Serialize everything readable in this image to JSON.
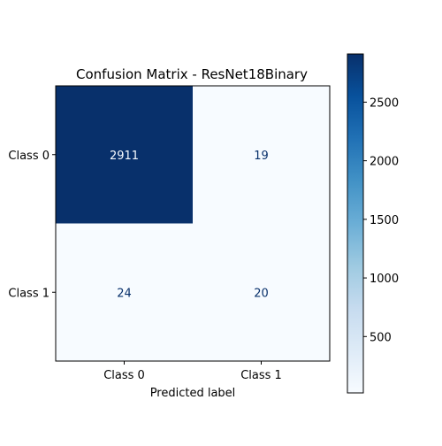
{
  "chart_data": {
    "type": "heatmap",
    "title": "Confusion Matrix - ResNet18Binary",
    "xlabel": "Predicted label",
    "ylabel": "",
    "row_labels": [
      "Class 0",
      "Class 1"
    ],
    "col_labels": [
      "Class 0",
      "Class 1"
    ],
    "values": [
      [
        2911,
        19
      ],
      [
        24,
        20
      ]
    ],
    "colormap": "Blues",
    "colorbar": {
      "min": 19,
      "max": 2911,
      "ticks": [
        500,
        1000,
        1500,
        2000,
        2500
      ]
    },
    "colors": {
      "low": "#f7fbff",
      "high": "#08306b",
      "text_on_dark": "#f7fbff",
      "text_on_light": "#08306b"
    }
  }
}
